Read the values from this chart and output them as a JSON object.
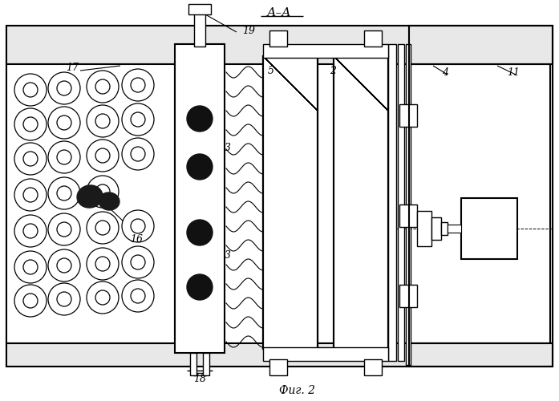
{
  "bg_color": "#ffffff",
  "line_color": "#000000",
  "fig_width": 6.97,
  "fig_height": 5.0,
  "dpi": 100
}
